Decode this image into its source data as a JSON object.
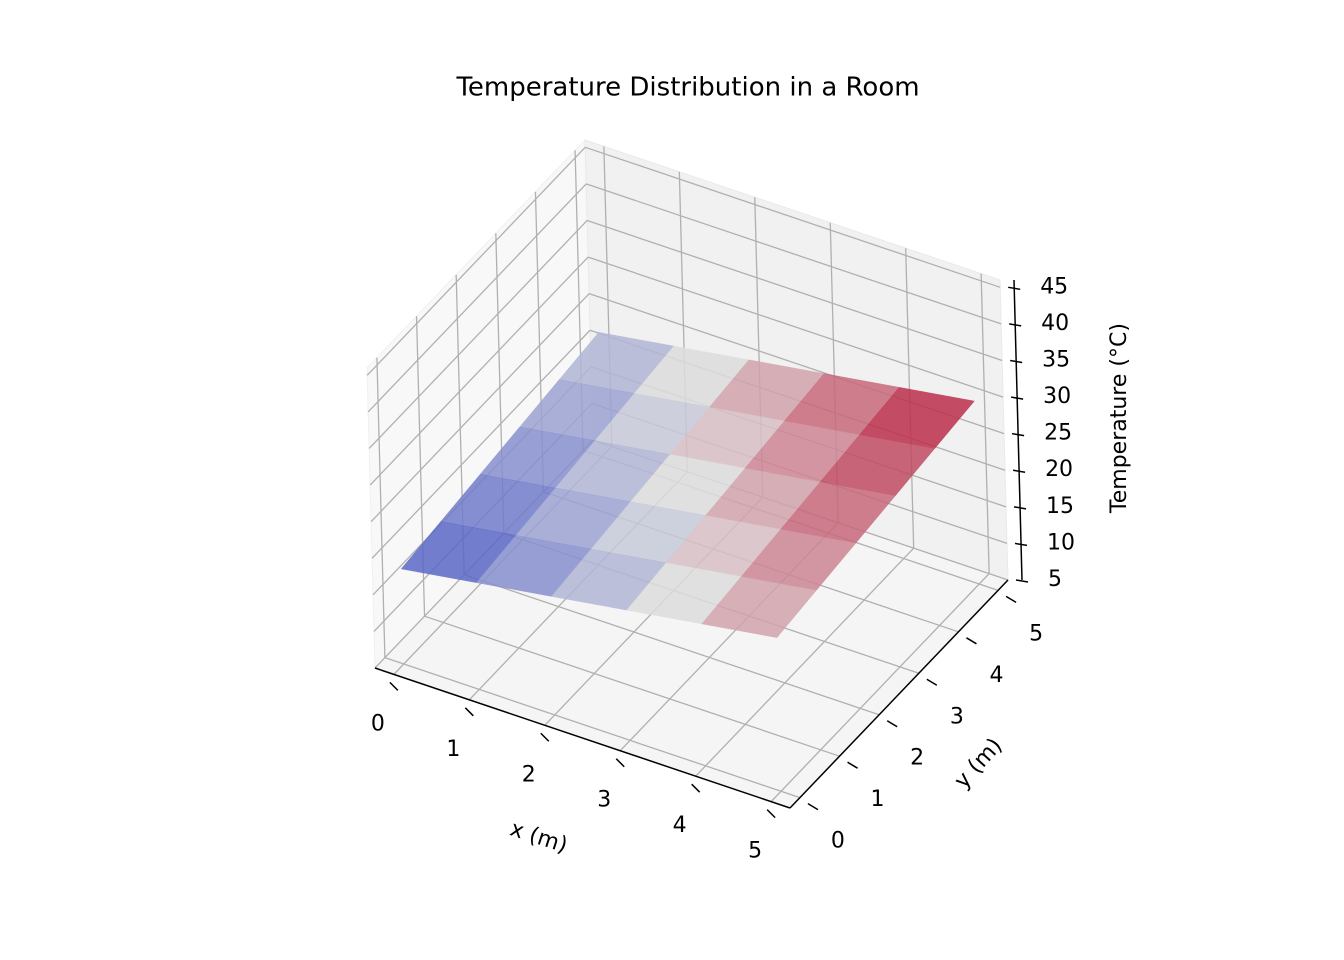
{
  "chart_data": {
    "type": "surface",
    "title": "Temperature Distribution in a Room",
    "xlabel": "x (m)",
    "ylabel": "y (m)",
    "zlabel": "Temperature (°C)",
    "x": [
      0,
      1,
      2,
      3,
      4,
      5
    ],
    "y": [
      0,
      1,
      2,
      3,
      4,
      5
    ],
    "z": [
      [
        18,
        19.6,
        21.2,
        22.8,
        24.4,
        26
      ],
      [
        18.8,
        20.4,
        22,
        23.6,
        25.2,
        26.8
      ],
      [
        19.6,
        21.2,
        22.8,
        24.4,
        26,
        27.6
      ],
      [
        20.4,
        22,
        23.6,
        25.2,
        26.8,
        28.4
      ],
      [
        21.2,
        22.8,
        24.4,
        26,
        27.6,
        29.2
      ],
      [
        22,
        23.6,
        25.2,
        26.8,
        28.4,
        30
      ]
    ],
    "colormap": "coolwarm",
    "xlim": [
      -0.25,
      5.25
    ],
    "ylim": [
      -0.25,
      5.25
    ],
    "zlim": [
      5,
      46
    ],
    "xticks": [
      0,
      1,
      2,
      3,
      4,
      5
    ],
    "yticks": [
      0,
      1,
      2,
      3,
      4,
      5
    ],
    "zticks": [
      5,
      10,
      15,
      20,
      25,
      30,
      35,
      40,
      45
    ],
    "grid": true
  }
}
